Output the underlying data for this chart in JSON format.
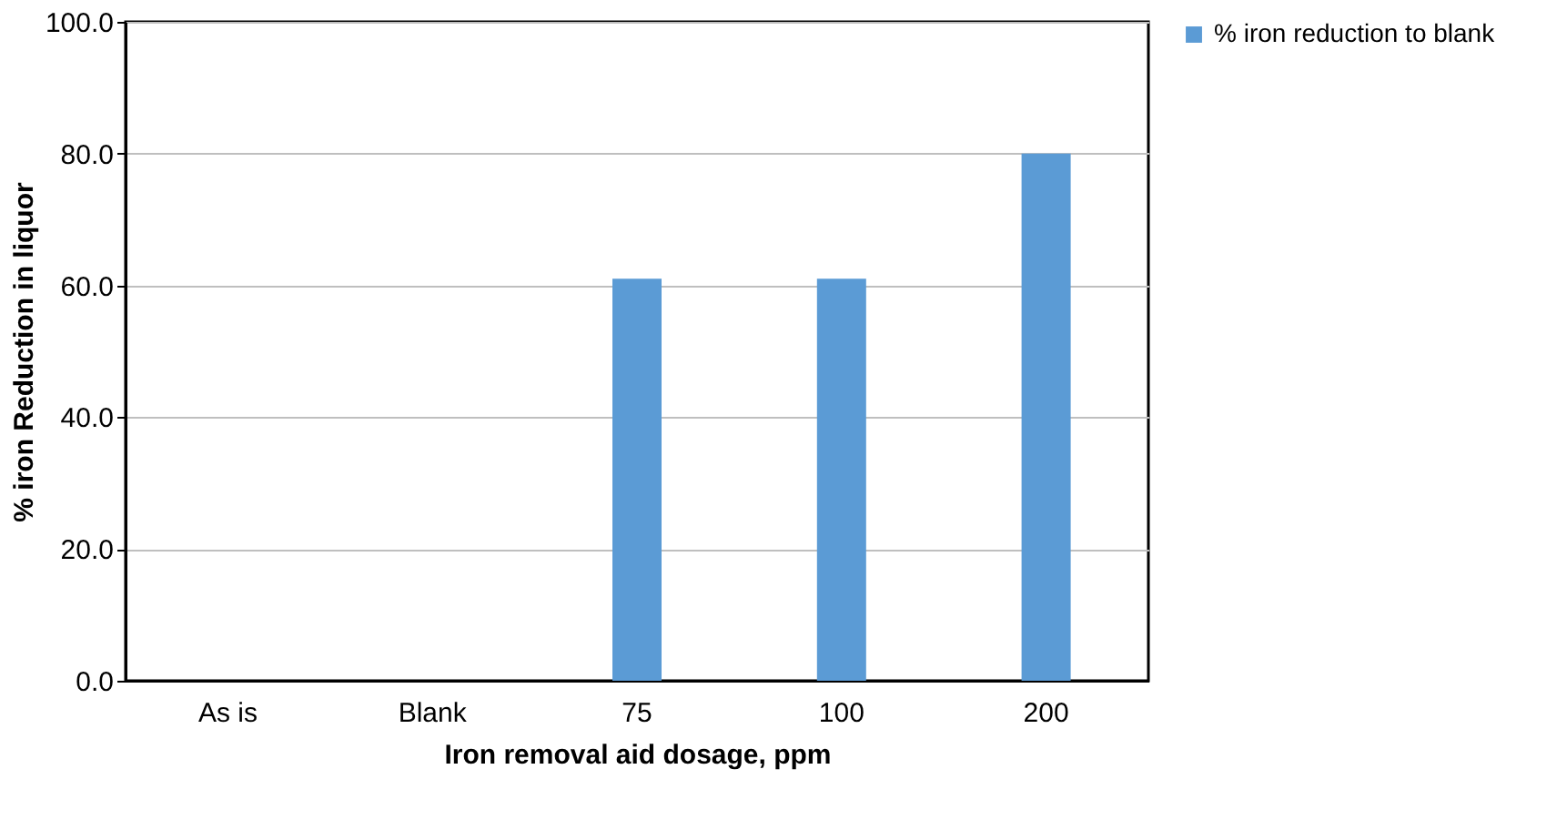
{
  "chart_data": {
    "type": "bar",
    "xlabel": "Iron removal aid dosage, ppm",
    "ylabel": "% iron Reduction in liquor",
    "categories": [
      "As is",
      "Blank",
      "75",
      "100",
      "200"
    ],
    "series": [
      {
        "name": "% iron reduction to blank",
        "color": "#5b9bd5",
        "values": [
          0,
          0,
          61,
          61,
          80
        ]
      }
    ],
    "ylim": [
      0,
      100
    ],
    "yticks": [
      {
        "value": 0,
        "label": "0.0"
      },
      {
        "value": 20,
        "label": "20.0"
      },
      {
        "value": 40,
        "label": "40.0"
      },
      {
        "value": 60,
        "label": "60.0"
      },
      {
        "value": 80,
        "label": "80.0"
      },
      {
        "value": 100,
        "label": "100.0"
      }
    ],
    "grid": "y",
    "legend": "right"
  }
}
